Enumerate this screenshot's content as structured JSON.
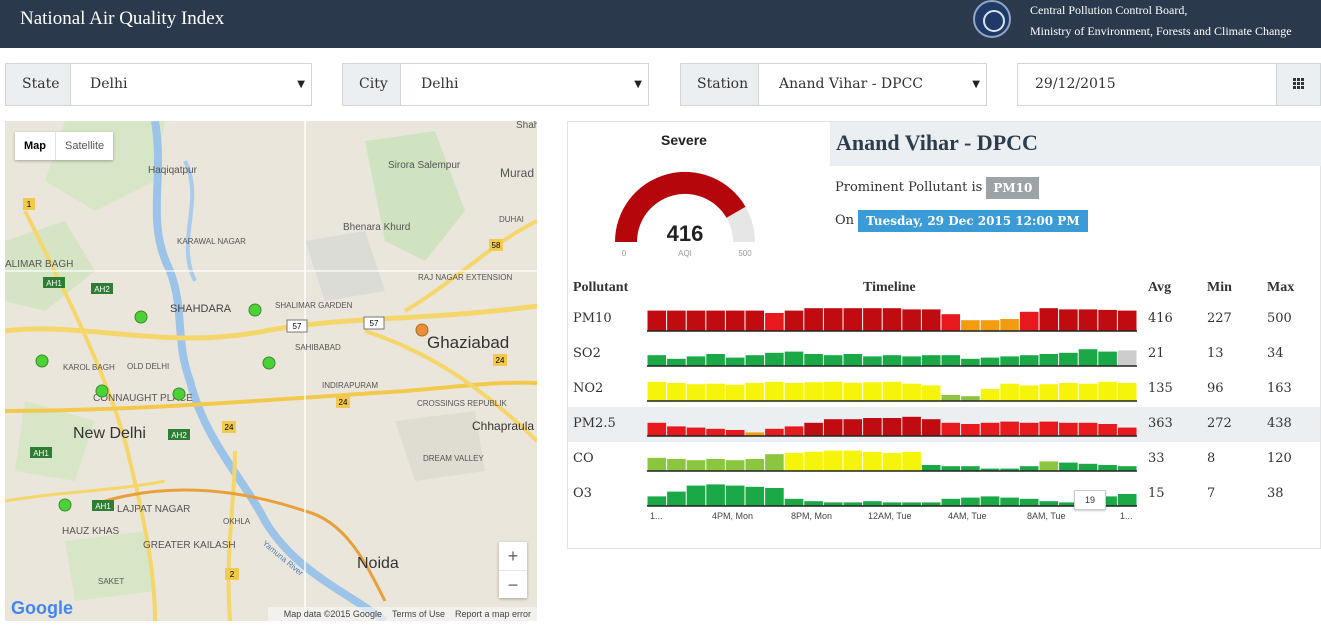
{
  "header": {
    "title": "National Air Quality Index",
    "org_line1": "Central Pollution Control Board,",
    "org_line2": "Ministry of Environment, Forests and Climate Change"
  },
  "filters": {
    "state": {
      "label": "State",
      "value": "Delhi"
    },
    "city": {
      "label": "City",
      "value": "Delhi"
    },
    "station": {
      "label": "Station",
      "value": "Anand Vihar - DPCC"
    },
    "date": {
      "value": "29/12/2015"
    }
  },
  "map": {
    "type_map": "Map",
    "type_satellite": "Satellite",
    "zoom_in": "+",
    "zoom_out": "−",
    "logo": "Google",
    "attribution": "Map data ©2015 Google",
    "terms": "Terms of Use",
    "report": "Report a map error",
    "labels": [
      "Haqiqatpur",
      "Sirora Salempur",
      "Murad",
      "Bhenara Khurd",
      "KARAWAL NAGAR",
      "ALIMAR BAGH",
      "SHAHDARA",
      "SHALIMAR GARDEN",
      "RAJ NAGAR EXTENSION",
      "Ghaziabad",
      "SAHIBABAD",
      "KAROL BAGH",
      "OLD DELHI",
      "CONNAUGHT PLACE",
      "INDIRAPURAM",
      "New Delhi",
      "CROSSINGS REPUBLIK",
      "Chhapraula",
      "DREAM VALLEY",
      "LAJPAT NAGAR",
      "HAUZ KHAS",
      "GREATER KAILASH",
      "OKHLA",
      "Noida",
      "SAKET",
      "Yamuna River",
      "DUHAI",
      "Shah"
    ],
    "roads": [
      "1",
      "AH1",
      "AH2",
      "57",
      "57",
      "58",
      "24",
      "24",
      "AH2",
      "24",
      "AH1",
      "AH1",
      "2"
    ],
    "station_colors": [
      "#4cd137",
      "#e98e3a"
    ]
  },
  "aqi": {
    "category": "Severe",
    "value": "416",
    "value_num": 416,
    "min_label": "0",
    "max_label": "500",
    "unit": "AQI",
    "gauge_color": "#b5060b",
    "track_color": "#e6e6e6"
  },
  "station_panel": {
    "name": "Anand Vihar - DPCC",
    "prominent_label": "Prominent Pollutant is",
    "prominent_value": "PM10",
    "on_label": "On",
    "datetime": "Tuesday, 29 Dec 2015 12:00 PM"
  },
  "table": {
    "headers": {
      "pollutant": "Pollutant",
      "timeline": "Timeline",
      "avg": "Avg",
      "min": "Min",
      "max": "Max"
    },
    "rows": [
      {
        "name": "PM10",
        "avg": "416",
        "min": "227",
        "max": "500",
        "highlight": false,
        "colors": [
          "#c00b10",
          "#c00b10",
          "#c00b10",
          "#c00b10",
          "#c00b10",
          "#c00b10",
          "#e8191c",
          "#c00b10",
          "#c00b10",
          "#c00b10",
          "#c00b10",
          "#c00b10",
          "#c00b10",
          "#c00b10",
          "#c00b10",
          "#e8191c",
          "#f39c12",
          "#f39c12",
          "#f39c12",
          "#e8191c",
          "#c00b10",
          "#c00b10",
          "#c00b10",
          "#c00b10",
          "#c00b10"
        ],
        "levels": [
          0.85,
          0.85,
          0.85,
          0.85,
          0.85,
          0.85,
          0.75,
          0.85,
          0.95,
          0.95,
          0.95,
          0.95,
          0.95,
          0.9,
          0.9,
          0.7,
          0.45,
          0.45,
          0.5,
          0.8,
          0.95,
          0.9,
          0.9,
          0.88,
          0.85
        ]
      },
      {
        "name": "SO2",
        "avg": "21",
        "min": "13",
        "max": "34",
        "highlight": false,
        "colors": [
          "#1ba847",
          "#1ba847",
          "#1ba847",
          "#1ba847",
          "#1ba847",
          "#1ba847",
          "#1ba847",
          "#1ba847",
          "#1ba847",
          "#1ba847",
          "#1ba847",
          "#1ba847",
          "#1ba847",
          "#1ba847",
          "#1ba847",
          "#1ba847",
          "#1ba847",
          "#1ba847",
          "#1ba847",
          "#1ba847",
          "#1ba847",
          "#1ba847",
          "#1ba847",
          "#1ba847",
          "#cccccc"
        ],
        "levels": [
          0.45,
          0.3,
          0.4,
          0.5,
          0.35,
          0.45,
          0.55,
          0.6,
          0.5,
          0.45,
          0.5,
          0.4,
          0.45,
          0.4,
          0.45,
          0.45,
          0.3,
          0.35,
          0.4,
          0.45,
          0.5,
          0.55,
          0.7,
          0.6,
          0.65
        ]
      },
      {
        "name": "NO2",
        "avg": "135",
        "min": "96",
        "max": "163",
        "highlight": false,
        "colors": [
          "#f7f40b",
          "#f7f40b",
          "#f7f40b",
          "#f7f40b",
          "#f7f40b",
          "#f7f40b",
          "#f7f40b",
          "#f7f40b",
          "#f7f40b",
          "#f7f40b",
          "#f7f40b",
          "#f7f40b",
          "#f7f40b",
          "#f7f40b",
          "#f7f40b",
          "#8cc63f",
          "#8cc63f",
          "#f7f40b",
          "#f7f40b",
          "#f7f40b",
          "#f7f40b",
          "#f7f40b",
          "#f7f40b",
          "#f7f40b",
          "#f7f40b"
        ],
        "levels": [
          0.8,
          0.75,
          0.7,
          0.72,
          0.68,
          0.75,
          0.8,
          0.75,
          0.78,
          0.8,
          0.76,
          0.78,
          0.8,
          0.72,
          0.65,
          0.25,
          0.2,
          0.5,
          0.72,
          0.65,
          0.7,
          0.75,
          0.72,
          0.8,
          0.75
        ]
      },
      {
        "name": "PM2.5",
        "avg": "363",
        "min": "272",
        "max": "438",
        "highlight": true,
        "colors": [
          "#e8191c",
          "#e8191c",
          "#e8191c",
          "#e8191c",
          "#e8191c",
          "#f39c12",
          "#e8191c",
          "#e8191c",
          "#c00b10",
          "#c00b10",
          "#c00b10",
          "#c00b10",
          "#c00b10",
          "#c00b10",
          "#c00b10",
          "#e8191c",
          "#e8191c",
          "#e8191c",
          "#e8191c",
          "#e8191c",
          "#e8191c",
          "#e8191c",
          "#e8191c",
          "#e8191c",
          "#e8191c"
        ],
        "levels": [
          0.55,
          0.4,
          0.35,
          0.3,
          0.25,
          0.15,
          0.3,
          0.4,
          0.55,
          0.7,
          0.7,
          0.75,
          0.75,
          0.8,
          0.7,
          0.55,
          0.5,
          0.55,
          0.6,
          0.55,
          0.6,
          0.55,
          0.55,
          0.5,
          0.35
        ]
      },
      {
        "name": "CO",
        "avg": "33",
        "min": "8",
        "max": "120",
        "highlight": false,
        "colors": [
          "#8cc63f",
          "#8cc63f",
          "#8cc63f",
          "#8cc63f",
          "#8cc63f",
          "#8cc63f",
          "#8cc63f",
          "#f7f40b",
          "#f7f40b",
          "#f7f40b",
          "#f7f40b",
          "#f7f40b",
          "#f7f40b",
          "#f7f40b",
          "#1ba847",
          "#1ba847",
          "#1ba847",
          "#1ba847",
          "#1ba847",
          "#1ba847",
          "#8cc63f",
          "#1ba847",
          "#1ba847",
          "#1ba847",
          "#1ba847"
        ],
        "levels": [
          0.55,
          0.5,
          0.45,
          0.5,
          0.45,
          0.5,
          0.7,
          0.75,
          0.8,
          0.85,
          0.85,
          0.8,
          0.75,
          0.8,
          0.25,
          0.2,
          0.2,
          0.1,
          0.1,
          0.2,
          0.4,
          0.35,
          0.3,
          0.25,
          0.2
        ]
      },
      {
        "name": "O3",
        "avg": "15",
        "min": "7",
        "max": "38",
        "highlight": false,
        "colors": [
          "#1ba847",
          "#1ba847",
          "#1ba847",
          "#1ba847",
          "#1ba847",
          "#1ba847",
          "#1ba847",
          "#1ba847",
          "#1ba847",
          "#1ba847",
          "#1ba847",
          "#1ba847",
          "#1ba847",
          "#1ba847",
          "#1ba847",
          "#1ba847",
          "#1ba847",
          "#1ba847",
          "#1ba847",
          "#1ba847",
          "#1ba847",
          "#1ba847",
          "#1ba847",
          "#1ba847",
          "#1ba847"
        ],
        "levels": [
          0.4,
          0.6,
          0.85,
          0.9,
          0.85,
          0.8,
          0.75,
          0.3,
          0.2,
          0.15,
          0.15,
          0.2,
          0.15,
          0.15,
          0.15,
          0.3,
          0.35,
          0.4,
          0.35,
          0.3,
          0.2,
          0.15,
          0.2,
          0.4,
          0.5
        ]
      }
    ],
    "axis_labels": [
      "1...",
      "4PM, Mon",
      "8PM, Mon",
      "12AM, Tue",
      "4AM, Tue",
      "8AM, Tue",
      "1..."
    ],
    "tooltip_value": "19"
  }
}
